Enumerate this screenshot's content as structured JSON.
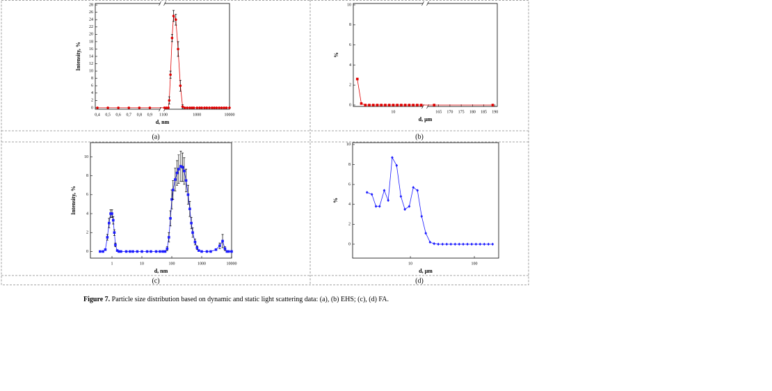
{
  "chart_data": [
    {
      "type": "line",
      "panel": "(a)",
      "xlabel": "d, nm",
      "ylabel": "Intensity, %",
      "color": "#e00000",
      "marker": "circle",
      "xscale": [
        "linear",
        "log"
      ],
      "xlim": [
        0.38,
        10000
      ],
      "xbreak": [
        1,
        100
      ],
      "xticks": [
        {
          "value": 0.4,
          "label": "0,4"
        },
        {
          "value": 0.5,
          "label": "0,5"
        },
        {
          "value": 0.6,
          "label": "0,6"
        },
        {
          "value": 0.7,
          "label": "0,7"
        },
        {
          "value": 0.8,
          "label": "0,8"
        },
        {
          "value": 0.9,
          "label": "0,9"
        },
        1,
        100,
        1000,
        10000
      ],
      "ylim": [
        -0.4,
        28.4
      ],
      "yticks": [
        0,
        2,
        4,
        6,
        8,
        10,
        12,
        14,
        16,
        18,
        20,
        22,
        24,
        26,
        28
      ],
      "x": [
        0.4,
        0.5,
        0.6,
        0.7,
        0.8,
        0.9,
        100,
        115,
        132,
        140,
        153,
        171,
        190,
        223,
        262,
        308,
        361,
        420,
        500,
        600,
        700,
        800,
        1000,
        1200,
        1400,
        1700,
        2000,
        2400,
        2900,
        3400,
        4000,
        4800,
        5700,
        6800,
        8000,
        10000
      ],
      "values": [
        0,
        0,
        0,
        0,
        0,
        0,
        0,
        0,
        0,
        2,
        9,
        19,
        25,
        24,
        16,
        6,
        0.3,
        0,
        0,
        0,
        0,
        0,
        0,
        0,
        0,
        0,
        0,
        0,
        0,
        0,
        0,
        0,
        0,
        0,
        0,
        0
      ],
      "errors": [
        null,
        null,
        null,
        null,
        null,
        null,
        null,
        null,
        null,
        1,
        1,
        1,
        1.5,
        1.5,
        2,
        1.5,
        0.5,
        null,
        null,
        null,
        null,
        null,
        null,
        null,
        null,
        null,
        null,
        null,
        null,
        null,
        null,
        null,
        null,
        null,
        null,
        null
      ]
    },
    {
      "type": "line",
      "panel": "(b)",
      "xlabel": "d, µm",
      "ylabel": "%",
      "color": "#e00000",
      "marker": "square",
      "xscale": [
        "linear",
        "linear"
      ],
      "xlim": [
        0,
        191
      ],
      "xbreak": [
        17.5,
        160
      ],
      "xticks": [
        10,
        165,
        170,
        175,
        180,
        185,
        190
      ],
      "ylim": [
        -0.14,
        10.14
      ],
      "yticks": [
        0,
        2,
        4,
        6,
        8,
        10
      ],
      "x": [
        1,
        2,
        3,
        4,
        5,
        6,
        7,
        8,
        9,
        10,
        11,
        12,
        13,
        14,
        15,
        16,
        17,
        163,
        189
      ],
      "values": [
        2.6,
        0.15,
        0,
        0,
        0,
        0,
        0,
        0,
        0,
        0,
        0,
        0,
        0,
        0,
        0,
        0,
        0,
        0,
        0
      ]
    },
    {
      "type": "line",
      "panel": "(c)",
      "xlabel": "d, nm",
      "ylabel": "Intensity, %",
      "color": "#1a1aff",
      "marker": "square",
      "xscale": "log",
      "xlim": [
        0.19,
        10000
      ],
      "xticks": [
        1,
        10,
        100,
        1000,
        10000
      ],
      "ylim": [
        -0.7,
        11.5
      ],
      "yticks": [
        0,
        2,
        4,
        6,
        8,
        10
      ],
      "x": [
        0.4,
        0.5,
        0.6,
        0.7,
        0.8,
        0.9,
        1,
        1.1,
        1.2,
        1.3,
        1.5,
        1.7,
        2,
        3,
        4,
        5,
        7,
        10,
        15,
        20,
        30,
        40,
        50,
        60,
        70,
        80,
        90,
        100,
        110,
        130,
        150,
        170,
        200,
        230,
        260,
        300,
        350,
        400,
        450,
        500,
        600,
        700,
        800,
        1000,
        1500,
        2000,
        3000,
        4000,
        5000,
        6000,
        7000,
        8000,
        10000
      ],
      "values": [
        0,
        0,
        0.2,
        1.5,
        3,
        4,
        4,
        3.3,
        2,
        0.7,
        0.1,
        0,
        0,
        0,
        0,
        0,
        0,
        0,
        0,
        0,
        0,
        0,
        0,
        0,
        0.3,
        1.5,
        3.5,
        5.5,
        6.5,
        7.6,
        8.3,
        8.7,
        9,
        8.9,
        8.5,
        7.5,
        6,
        4.5,
        3,
        2,
        1,
        0.4,
        0.1,
        0,
        0,
        0,
        0.2,
        0.6,
        1.1,
        0.3,
        0,
        0,
        0
      ],
      "errors": [
        null,
        null,
        0.1,
        0.3,
        0.5,
        0.4,
        0.4,
        0.4,
        0.3,
        0.2,
        null,
        null,
        null,
        null,
        null,
        null,
        null,
        null,
        null,
        null,
        null,
        null,
        null,
        null,
        0.2,
        0.5,
        0.8,
        1,
        1,
        1.2,
        1.3,
        1.5,
        1.6,
        1.5,
        1.4,
        1.2,
        1,
        0.8,
        0.6,
        0.5,
        0.3,
        0.2,
        null,
        null,
        null,
        null,
        0.1,
        0.3,
        0.7,
        0.2,
        null,
        null,
        null
      ]
    },
    {
      "type": "line",
      "panel": "(d)",
      "xlabel": "d, µm",
      "ylabel": "%",
      "color": "#1a1aff",
      "marker": "diamond",
      "xscale": "log",
      "xlim": [
        1.25,
        240
      ],
      "xticks": [
        10,
        100
      ],
      "ylim": [
        -1.4,
        10.2
      ],
      "yticks": [
        0,
        2,
        4,
        6,
        8,
        10
      ],
      "x": [
        2.1,
        2.5,
        2.9,
        3.3,
        3.9,
        4.5,
        5.2,
        6.1,
        7.1,
        8.2,
        9.6,
        11.1,
        12.9,
        15,
        17.4,
        20.3,
        23.5,
        27.3,
        31.8,
        37,
        43,
        50,
        58,
        67,
        78,
        91,
        106,
        123,
        143,
        166,
        193
      ],
      "values": [
        5.2,
        5,
        3.8,
        3.8,
        5.4,
        4.4,
        8.7,
        7.9,
        4.8,
        3.5,
        3.8,
        5.7,
        5.4,
        2.8,
        1.1,
        0.2,
        0.05,
        0,
        0,
        0,
        0,
        0,
        0,
        0,
        0,
        0,
        0,
        0,
        0,
        0,
        0
      ]
    }
  ],
  "caption": {
    "label": "Figure 7.",
    "text": " Particle size distribution based on dynamic and static light scattering data: (a), (b) EHS; (c), (d) FA."
  }
}
